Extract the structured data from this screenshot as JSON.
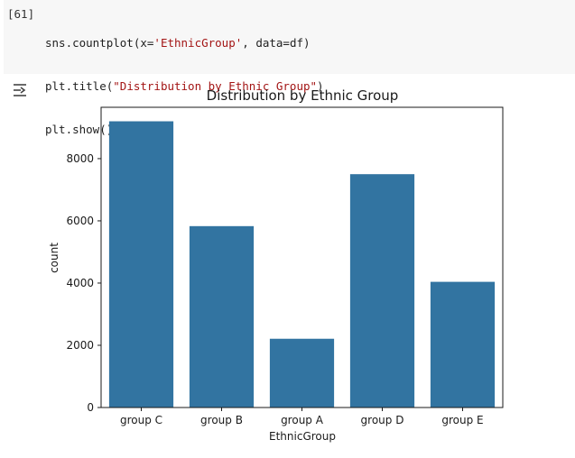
{
  "cell": {
    "exec_count": "[61]",
    "lines": [
      {
        "pre": "sns.countplot(x=",
        "str": "'EthnicGroup'",
        "post": ", data=df)"
      },
      {
        "pre": "plt.title(",
        "str": "\"Distribution by Ethnic Group\"",
        "post": ")"
      },
      {
        "pre": "plt.show()",
        "str": "",
        "post": ""
      }
    ]
  },
  "output_toggle_icon": "output-collapse-icon",
  "chart_data": {
    "type": "bar",
    "title": "Distribution by Ethnic Group",
    "xlabel": "EthnicGroup",
    "ylabel": "count",
    "categories": [
      "group C",
      "group B",
      "group A",
      "group D",
      "group E"
    ],
    "values": [
      9200,
      5830,
      2210,
      7500,
      4040
    ],
    "ylim": [
      0,
      9650
    ],
    "yticks": [
      0,
      2000,
      4000,
      6000,
      8000
    ],
    "bar_color": "#3274a1",
    "grid": false
  }
}
